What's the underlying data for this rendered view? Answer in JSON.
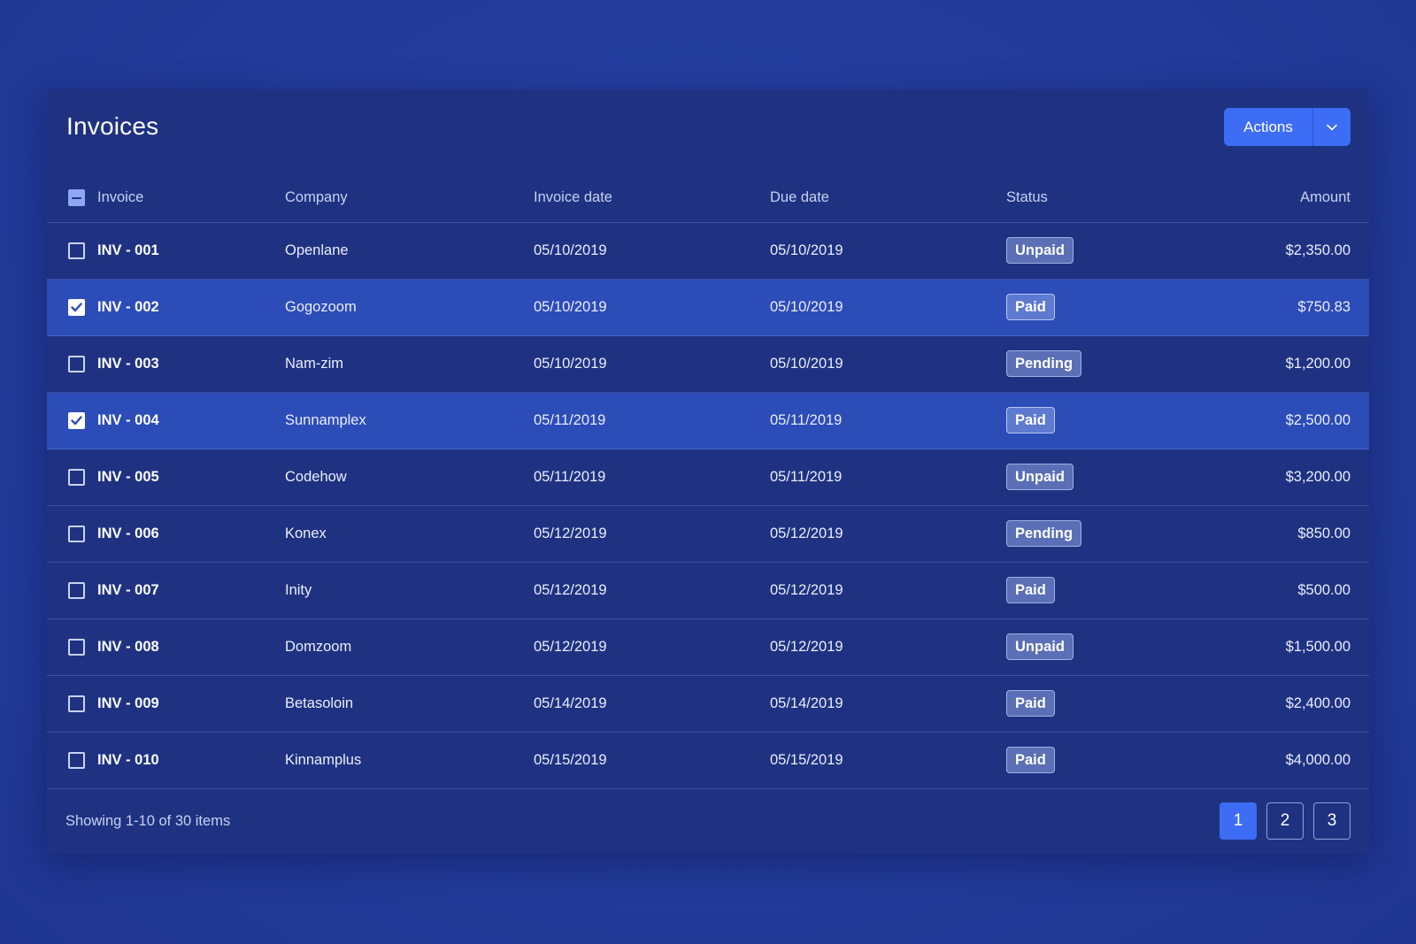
{
  "header": {
    "title": "Invoices",
    "actions_label": "Actions"
  },
  "table": {
    "columns": {
      "invoice": "Invoice",
      "company": "Company",
      "invoice_date": "Invoice date",
      "due_date": "Due date",
      "status": "Status",
      "amount": "Amount"
    },
    "select_all_state": "indeterminate",
    "rows": [
      {
        "id": "INV - 001",
        "company": "Openlane",
        "invoice_date": "05/10/2019",
        "due_date": "05/10/2019",
        "status": "Unpaid",
        "amount": "$2,350.00",
        "selected": false
      },
      {
        "id": "INV - 002",
        "company": "Gogozoom",
        "invoice_date": "05/10/2019",
        "due_date": "05/10/2019",
        "status": "Paid",
        "amount": "$750.83",
        "selected": true
      },
      {
        "id": "INV - 003",
        "company": "Nam-zim",
        "invoice_date": "05/10/2019",
        "due_date": "05/10/2019",
        "status": "Pending",
        "amount": "$1,200.00",
        "selected": false
      },
      {
        "id": "INV - 004",
        "company": "Sunnamplex",
        "invoice_date": "05/11/2019",
        "due_date": "05/11/2019",
        "status": "Paid",
        "amount": "$2,500.00",
        "selected": true
      },
      {
        "id": "INV - 005",
        "company": "Codehow",
        "invoice_date": "05/11/2019",
        "due_date": "05/11/2019",
        "status": "Unpaid",
        "amount": "$3,200.00",
        "selected": false
      },
      {
        "id": "INV - 006",
        "company": "Konex",
        "invoice_date": "05/12/2019",
        "due_date": "05/12/2019",
        "status": "Pending",
        "amount": "$850.00",
        "selected": false
      },
      {
        "id": "INV - 007",
        "company": "Inity",
        "invoice_date": "05/12/2019",
        "due_date": "05/12/2019",
        "status": "Paid",
        "amount": "$500.00",
        "selected": false
      },
      {
        "id": "INV - 008",
        "company": "Domzoom",
        "invoice_date": "05/12/2019",
        "due_date": "05/12/2019",
        "status": "Unpaid",
        "amount": "$1,500.00",
        "selected": false
      },
      {
        "id": "INV - 009",
        "company": "Betasoloin",
        "invoice_date": "05/14/2019",
        "due_date": "05/14/2019",
        "status": "Paid",
        "amount": "$2,400.00",
        "selected": false
      },
      {
        "id": "INV - 010",
        "company": "Kinnamplus",
        "invoice_date": "05/15/2019",
        "due_date": "05/15/2019",
        "status": "Paid",
        "amount": "$4,000.00",
        "selected": false
      }
    ]
  },
  "footer": {
    "showing_text": "Showing 1-10 of 30 items",
    "pages": [
      "1",
      "2",
      "3"
    ],
    "current_page": "1"
  },
  "icons": {
    "dropdown": "chevron-down-icon",
    "check": "check-icon",
    "indeterminate": "minus-icon"
  },
  "colors": {
    "background": "#233b9a",
    "card": "#1f3282",
    "selected_row": "#2c4cb8",
    "accent": "#3d6cf5",
    "badge": "#5a6fb6"
  }
}
